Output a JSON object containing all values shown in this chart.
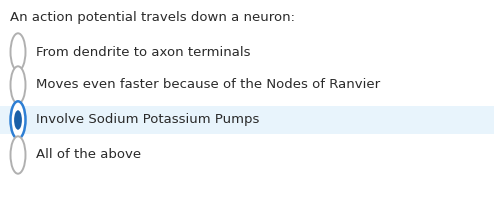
{
  "background_color": "#ffffff",
  "question": "An action potential travels down a neuron:",
  "options": [
    "From dendrite to axon terminals",
    "Moves even faster because of the Nodes of Ranvier",
    "Involve Sodium Potassium Pumps",
    "All of the above"
  ],
  "selected_index": 2,
  "selected_bg_color": "#e8f4fc",
  "selected_border_color": "#2e7fd4",
  "selected_dot_color": "#1a5fa8",
  "unselected_border_color": "#b0b0b0",
  "text_color": "#2a2a2a",
  "question_fontsize": 9.5,
  "option_fontsize": 9.5,
  "fig_width": 4.94,
  "fig_height": 1.98,
  "dpi": 100
}
